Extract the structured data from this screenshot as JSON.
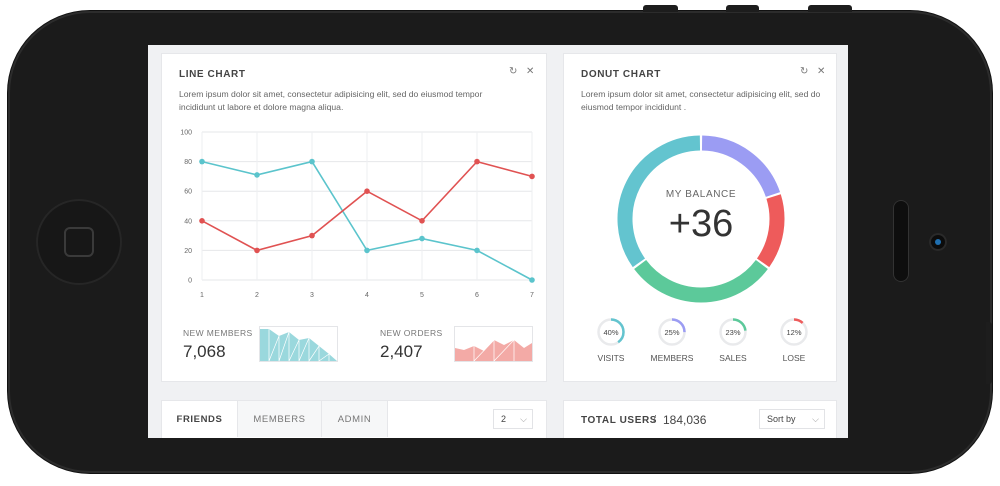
{
  "line_card": {
    "title": "LINE CHART",
    "desc_line1": "Lorem ipsum dolor sit amet, consectetur adipisicing elit, sed do eiusmod tempor",
    "desc_line2": "incididunt ut labore et dolore magna aliqua.",
    "refresh_icon": "↻",
    "close_icon": "✕"
  },
  "chart_data": {
    "type": "line",
    "x": [
      1,
      2,
      3,
      4,
      5,
      6,
      7
    ],
    "categories": [
      "1",
      "2",
      "3",
      "4",
      "5",
      "6",
      "7"
    ],
    "series": [
      {
        "values": [
          80,
          71,
          80,
          20,
          28,
          20,
          0
        ],
        "color": "#5bc4cc"
      },
      {
        "values": [
          40,
          20,
          30,
          60,
          40,
          80,
          70
        ],
        "color": "#e05252"
      }
    ],
    "yticks": [
      "100",
      "80",
      "60",
      "40",
      "20",
      "0"
    ],
    "ylim": [
      0,
      100
    ],
    "grid": true
  },
  "stats": {
    "members_label": "NEW MEMBERS",
    "members_value": "7,068",
    "orders_label": "NEW ORDERS",
    "orders_value": "2,407"
  },
  "donut_card": {
    "title": "DONUT CHART",
    "desc_line1": "Lorem ipsum dolor sit amet, consectetur adipisicing elit, sed do",
    "desc_line2": "eiusmod tempor incididunt .",
    "refresh_icon": "↻",
    "close_icon": "✕",
    "center_label": "MY BALANCE",
    "center_value": "+36",
    "segments": [
      {
        "value": 20,
        "color": "#9b9cf3"
      },
      {
        "value": 15,
        "color": "#ee5b5b"
      },
      {
        "value": 30,
        "color": "#5cc99a"
      },
      {
        "value": 35,
        "color": "#63c4cf"
      }
    ],
    "mini": [
      {
        "pct": "40%",
        "value": 40,
        "label": "VISITS",
        "color": "#63c4cf"
      },
      {
        "pct": "25%",
        "value": 25,
        "label": "MEMBERS",
        "color": "#9b9cf3"
      },
      {
        "pct": "23%",
        "value": 23,
        "label": "SALES",
        "color": "#5cc99a"
      },
      {
        "pct": "12%",
        "value": 12,
        "label": "LOSE",
        "color": "#ee5b5b"
      }
    ]
  },
  "friends_card": {
    "tabs": [
      "FRIENDS",
      "MEMBERS",
      "ADMIN"
    ],
    "select_value": "2",
    "chevron_icon": "⌵"
  },
  "users_card": {
    "title": "TOTAL USERS",
    "separator": "/",
    "value": "184,036",
    "sort_label": "Sort by",
    "chevron_icon": "⌵"
  }
}
